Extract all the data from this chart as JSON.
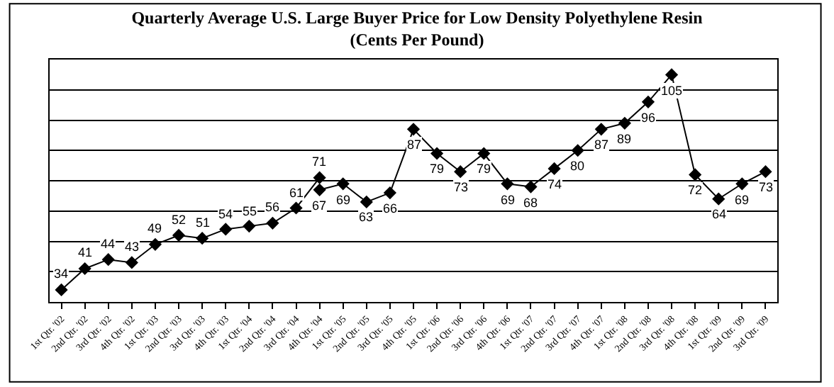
{
  "chart_data": {
    "type": "line",
    "title": "Quarterly Average U.S. Large Buyer Price for Low Density Polyethylene Resin",
    "subtitle": "(Cents Per Pound)",
    "categories": [
      "1st Qtr. '02",
      "2nd Qtr. '02",
      "3rd Qtr. '02",
      "4th Qtr. '02",
      "1st Qtr. '03",
      "2nd Qtr. '03",
      "3rd Qtr. '03",
      "4th Qtr. '03",
      "1st Qtr. '04",
      "2nd Qtr. '04",
      "3rd Qtr. '04",
      "4th Qtr. '04",
      "1st Qtr. '05",
      "2nd Qtr. '05",
      "3rd Qtr. '05",
      "4th Qtr. '05",
      "1st Qtr. '06",
      "2nd Qtr. '06",
      "3rd Qtr. '06",
      "4th Qtr. '06",
      "1st Qtr. '07",
      "2nd Qtr. '07",
      "3rd Qtr. '07",
      "4th Qtr. '07",
      "1st Qtr. '08",
      "2nd Qtr. '08",
      "3rd Qtr. '08",
      "4th Qtr. '08",
      "1st Qtr. '09",
      "2nd Qtr. '09",
      "3rd Qtr. '09"
    ],
    "series": [
      {
        "color": "#000000",
        "values": [
          34,
          41,
          44,
          43,
          49,
          52,
          51,
          54,
          55,
          56,
          61,
          71,
          null,
          null,
          null,
          null,
          null,
          null,
          null,
          null,
          null,
          null,
          null,
          null,
          null,
          null,
          null,
          null,
          null,
          null,
          null
        ]
      },
      {
        "color": "#000000",
        "values": [
          null,
          null,
          null,
          null,
          null,
          null,
          null,
          null,
          null,
          null,
          null,
          67,
          69,
          63,
          66,
          87,
          79,
          73,
          79,
          69,
          68,
          74,
          80,
          87,
          89,
          96,
          105,
          72,
          64,
          69,
          73
        ]
      }
    ],
    "ylim": [
      30,
      110
    ],
    "yticks": [
      {
        "value": 30,
        "label": null
      },
      {
        "value": 40,
        "label": null
      },
      {
        "value": 50,
        "label": null
      },
      {
        "value": 60,
        "label": null
      },
      {
        "value": 70,
        "label": null
      },
      {
        "value": 80,
        "label": null
      },
      {
        "value": 90,
        "label": null
      },
      {
        "value": 100,
        "label": null
      },
      {
        "value": 110,
        "label": null
      }
    ],
    "tick_labels": "x",
    "grid": "y",
    "marker": "diamond",
    "line_style": "solid",
    "data_labels": true
  }
}
